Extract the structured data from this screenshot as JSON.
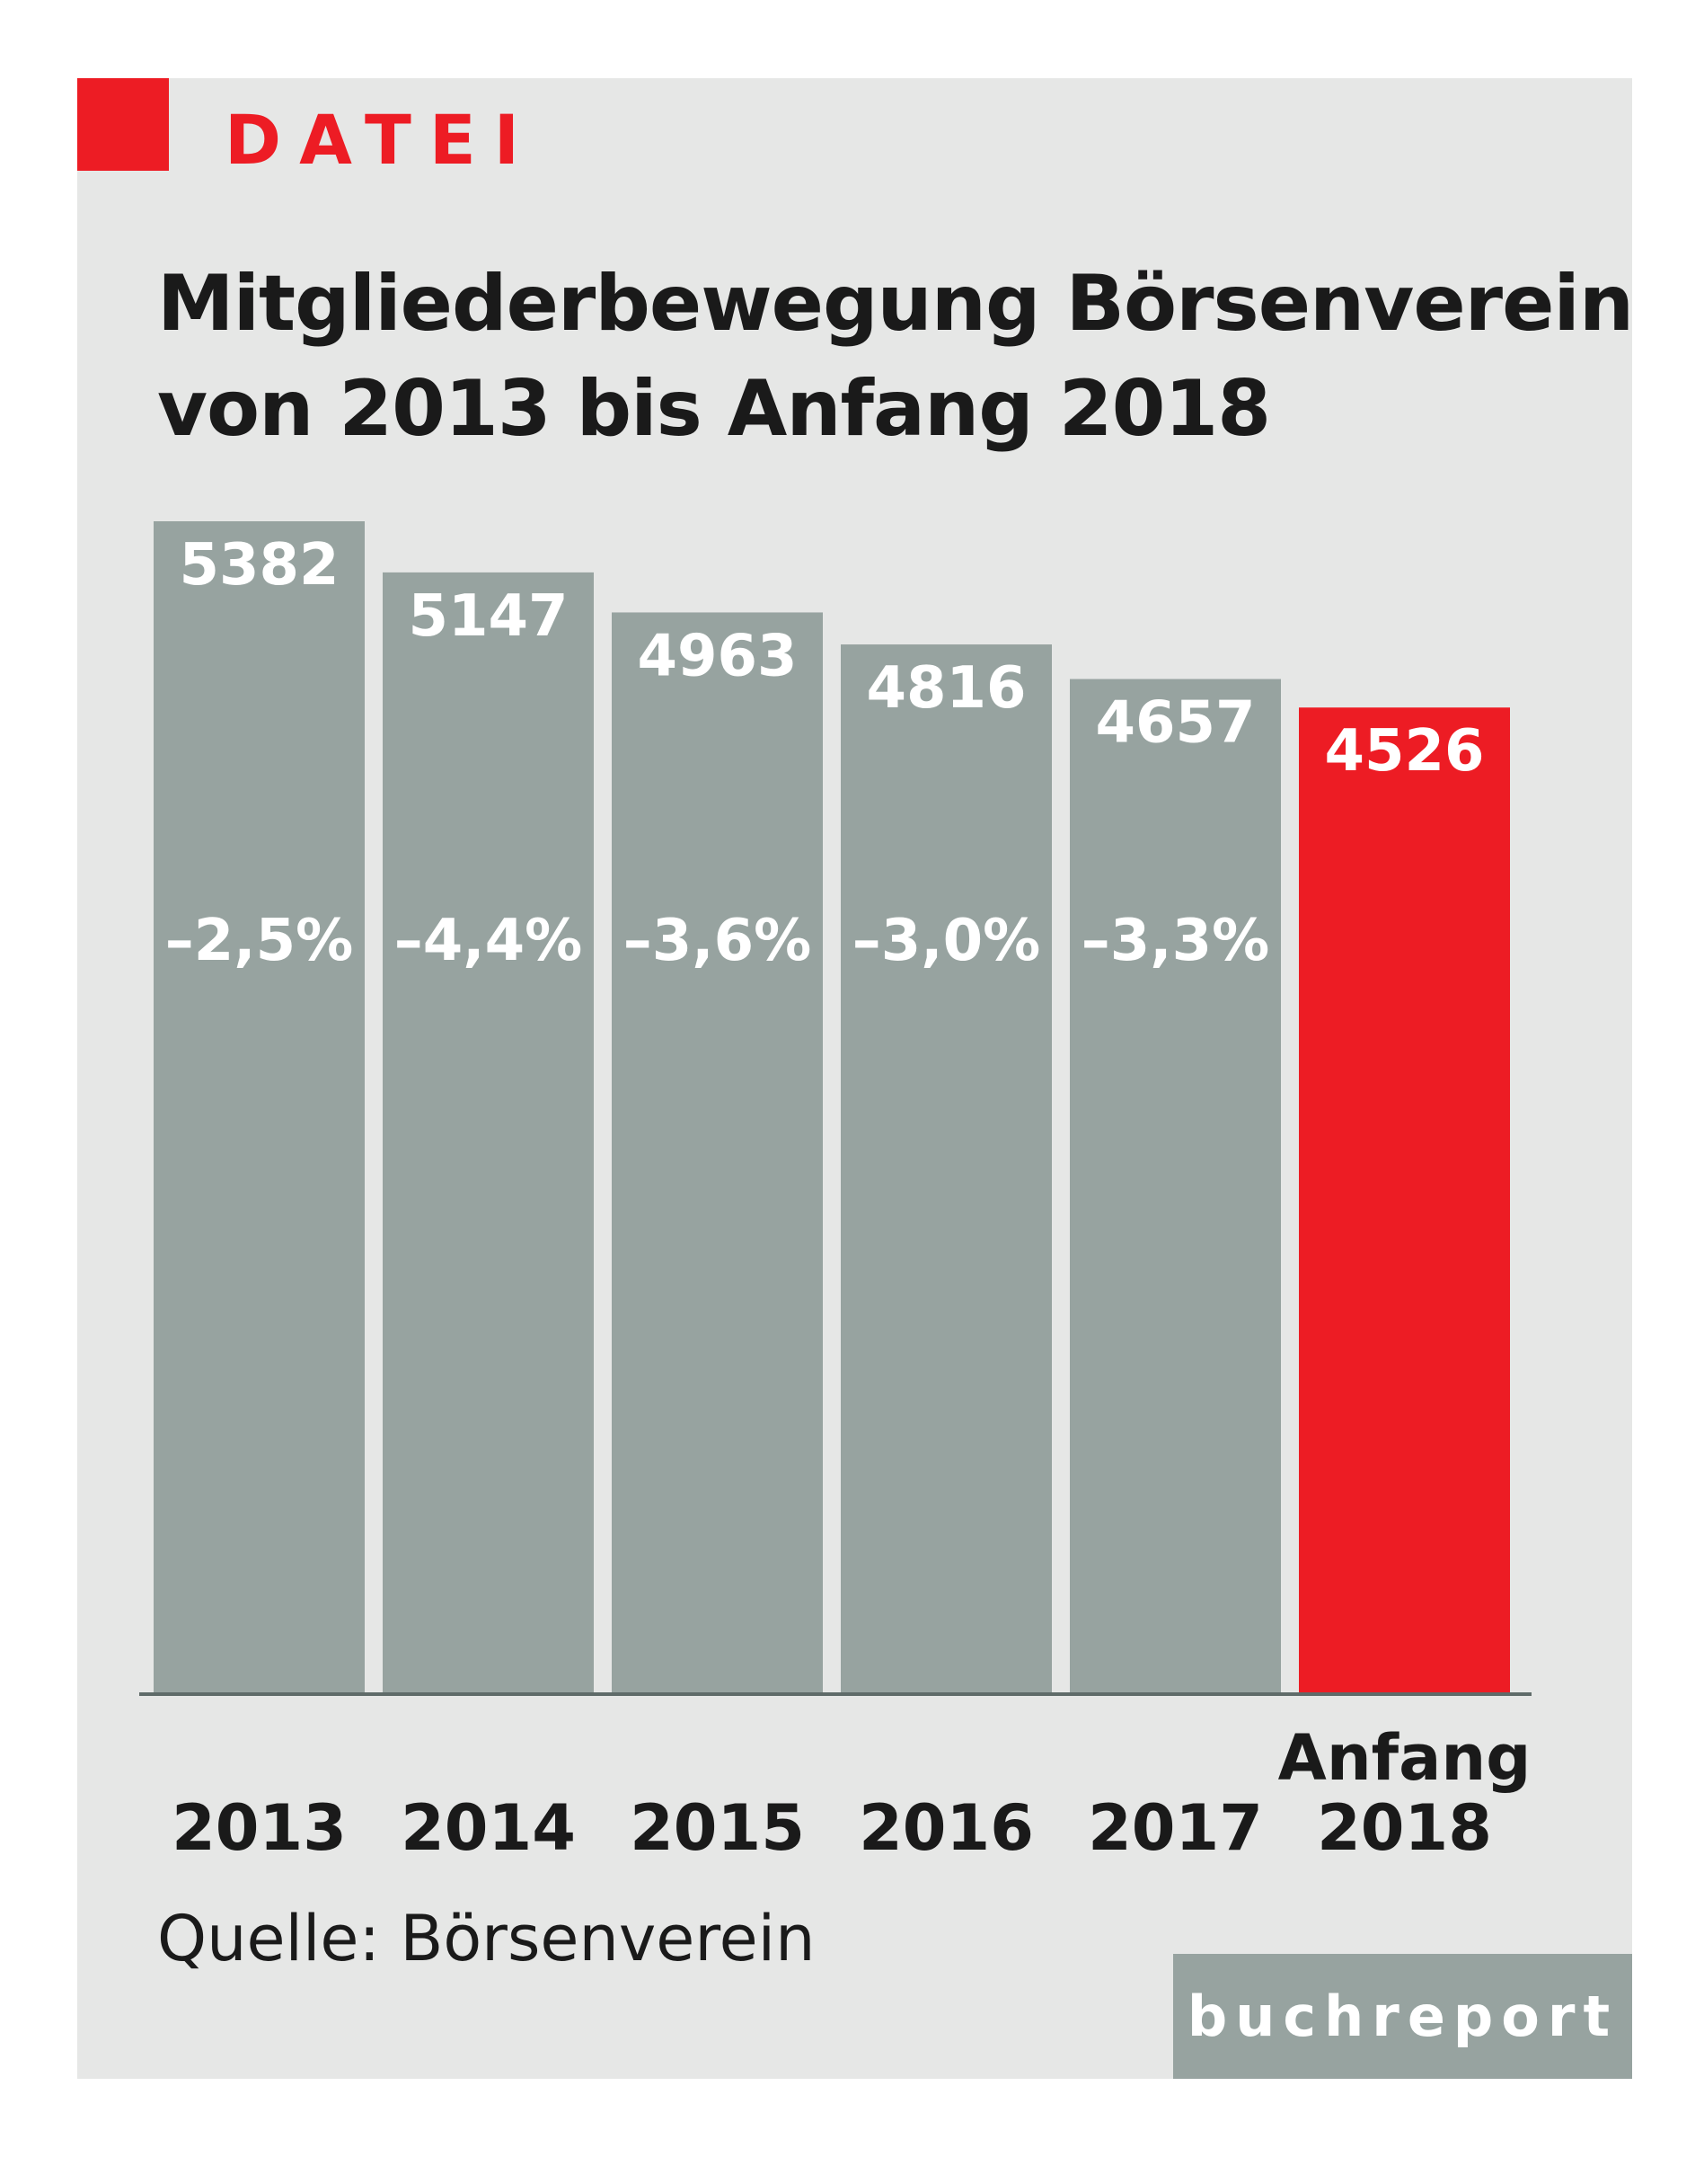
{
  "header": {
    "kicker": "DATEI",
    "accent_color": "#ed1c24"
  },
  "chart_data": {
    "type": "bar",
    "title": "Mitgliederbewegung Börsenverein von 2013 bis Anfang 2018",
    "title_lines": [
      "Mitgliederbewegung Börsenverein",
      "von 2013 bis Anfang 2018"
    ],
    "categories": [
      [
        "2013"
      ],
      [
        "2014"
      ],
      [
        "2015"
      ],
      [
        "2016"
      ],
      [
        "2017"
      ],
      [
        "Anfang",
        "2018"
      ]
    ],
    "values": [
      5382,
      5147,
      4963,
      4816,
      4657,
      4526
    ],
    "value_labels": [
      "5382",
      "5147",
      "4963",
      "4816",
      "4657",
      "4526"
    ],
    "change_labels": [
      "–2,5%",
      "–4,4%",
      "–3,6%",
      "–3,0%",
      "–3,3%",
      ""
    ],
    "bar_colors": [
      "#97a3a0",
      "#97a3a0",
      "#97a3a0",
      "#97a3a0",
      "#97a3a0",
      "#ed1c24"
    ],
    "xlabel": "",
    "ylabel": "",
    "ylim": [
      0,
      5382
    ],
    "grid": false,
    "legend": "none"
  },
  "footer": {
    "source": "Quelle: Börsenverein",
    "brand": "buchreport"
  }
}
